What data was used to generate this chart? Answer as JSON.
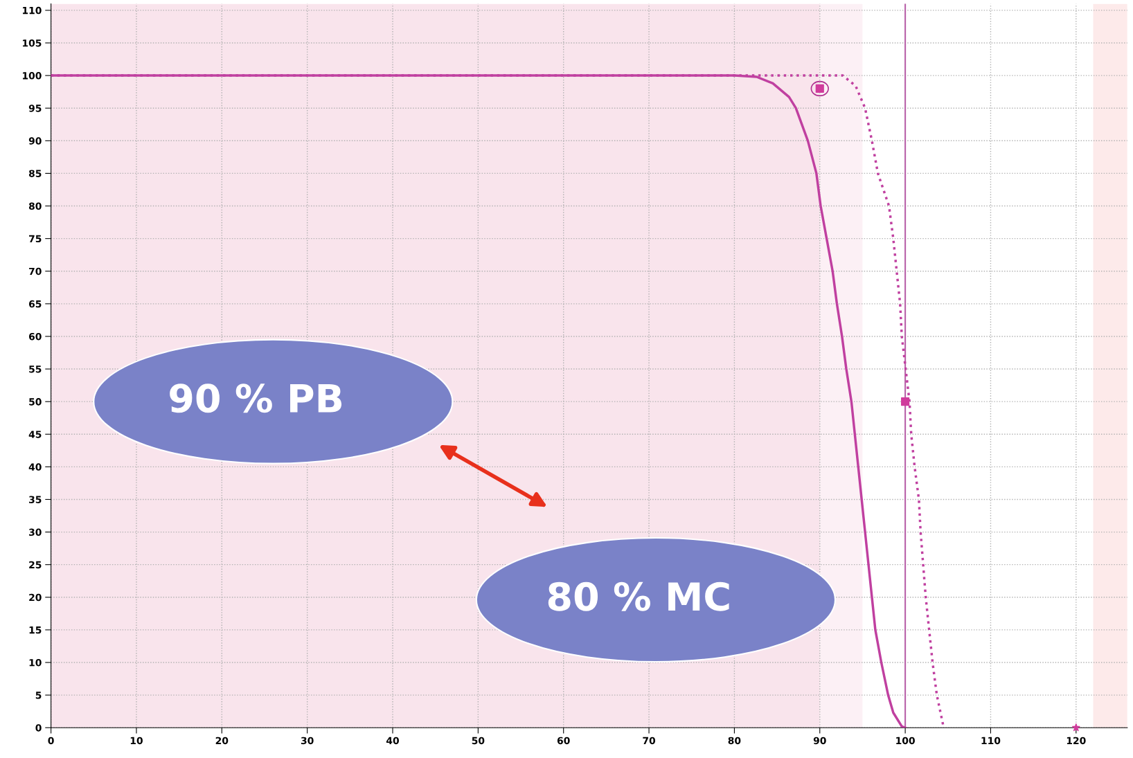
{
  "chart_data": {
    "type": "line",
    "xlim": [
      0,
      126
    ],
    "ylim": [
      0,
      111
    ],
    "xticks": [
      0,
      10,
      20,
      30,
      40,
      50,
      60,
      70,
      80,
      90,
      100,
      110,
      120
    ],
    "yticks": [
      0,
      5,
      10,
      15,
      20,
      25,
      30,
      35,
      40,
      45,
      50,
      55,
      60,
      65,
      70,
      75,
      80,
      85,
      90,
      95,
      100,
      105,
      110
    ],
    "grid": true,
    "legend": false,
    "series": [
      {
        "color": "#c040a0",
        "line_style": "solid",
        "marker": "none",
        "x": [
          0,
          80,
          82.6,
          84.5,
          86.4,
          87.2,
          88.6,
          89.6,
          90.1,
          90.8,
          91.5,
          92.0,
          92.6,
          93.1,
          93.7,
          94.5,
          94.9,
          95.3,
          95.7,
          96.1,
          96.5,
          97.2,
          98.0,
          98.6,
          99.6,
          100
        ],
        "values": [
          100,
          100,
          99.8,
          98.8,
          96.7,
          95,
          90,
          85,
          80,
          75,
          70,
          65,
          60,
          55,
          50,
          40,
          35,
          30,
          25,
          20,
          15,
          10,
          5,
          2.3,
          0.2,
          0
        ]
      },
      {
        "color": "#c040a0",
        "line_style": "dotted",
        "marker": "none",
        "x": [
          0,
          92.7,
          94.2,
          95.3,
          96.1,
          96.8,
          98.1,
          98.6,
          99.0,
          99.4,
          99.6,
          100.05,
          100.5,
          100.7,
          101.1,
          101.6,
          101.8,
          102.1,
          102.4,
          102.8,
          103.2,
          103.7,
          104.5
        ],
        "values": [
          100,
          100,
          98.4,
          95,
          90,
          85,
          80,
          75,
          70,
          65,
          60,
          55,
          50,
          45,
          40,
          35,
          30,
          25,
          20,
          15,
          10,
          5,
          0
        ]
      },
      {
        "type": "scatter",
        "color": "#d03c9c",
        "marker": "square",
        "x": [
          90,
          100
        ],
        "values": [
          98,
          50
        ]
      },
      {
        "type": "scatter",
        "color": "#d03c9c",
        "marker": "star",
        "x": [
          120
        ],
        "values": [
          0
        ]
      }
    ],
    "ref_lines": [
      {
        "axis": "x",
        "value": 100,
        "color": "#b860a8",
        "line_style": "solid"
      }
    ],
    "bands": [
      {
        "axis": "x",
        "from": 0,
        "to": 90,
        "color": "#f9e4ec"
      },
      {
        "axis": "x",
        "from": 90,
        "to": 95,
        "color": "#fcf0f5"
      },
      {
        "axis": "x",
        "from": 122,
        "to": 126,
        "color": "#fdeaea"
      }
    ],
    "annotations": [
      "90 % PB",
      "80 % MC"
    ]
  }
}
